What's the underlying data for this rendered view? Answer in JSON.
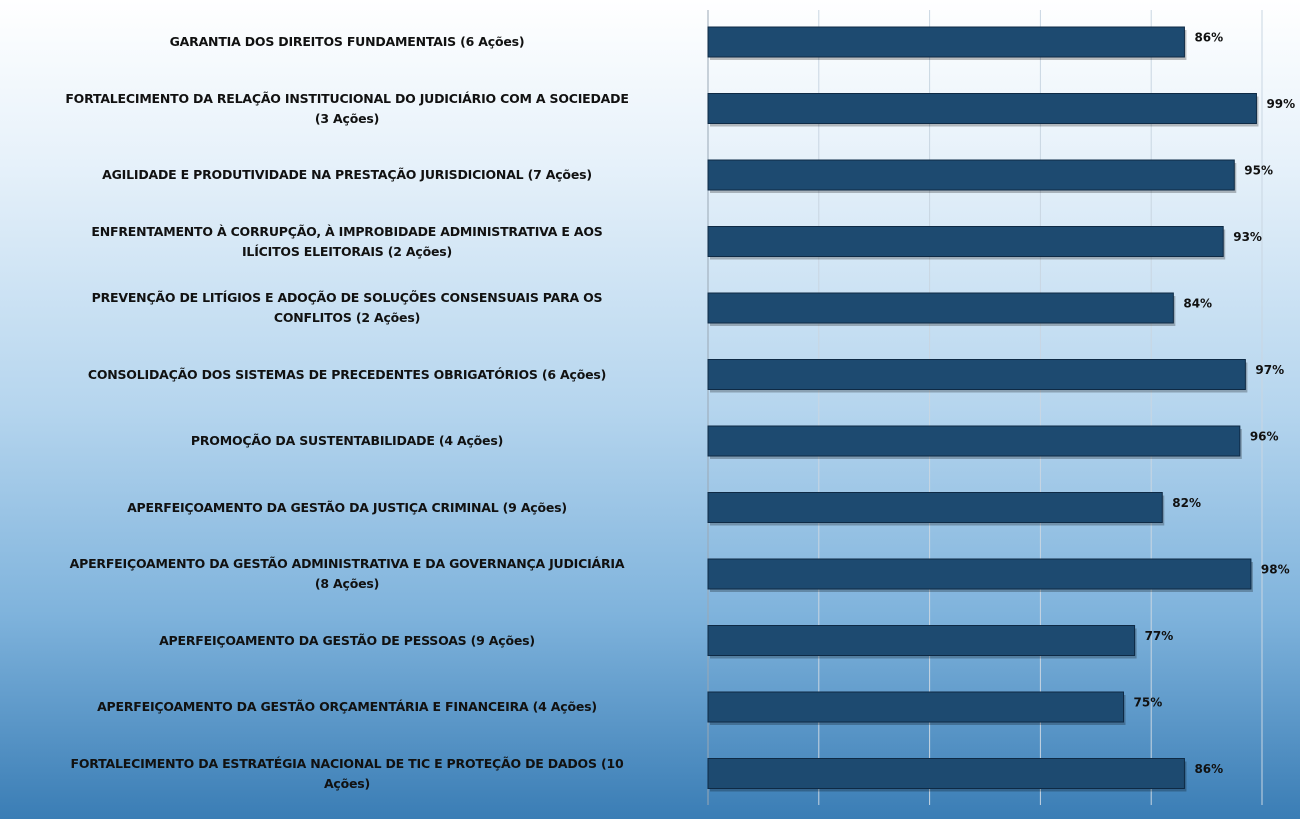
{
  "chart_data": {
    "type": "barh",
    "categories": [
      "GARANTIA DOS DIREITOS FUNDAMENTAIS (6 Ações)",
      "FORTALECIMENTO DA RELAÇÃO INSTITUCIONAL DO JUDICIÁRIO COM A SOCIEDADE\n(3 Ações)",
      "AGILIDADE E PRODUTIVIDADE NA PRESTAÇÃO JURISDICIONAL  (7 Ações)",
      "ENFRENTAMENTO À CORRUPÇÃO, À IMPROBIDADE  ADMINISTRATIVA E AOS\nILÍCITOS ELEITORAIS (2 Ações)",
      "PREVENÇÃO DE LITÍGIOS E ADOÇÃO DE SOLUÇÕES CONSENSUAIS PARA OS\nCONFLITOS (2 Ações)",
      "CONSOLIDAÇÃO DOS SISTEMAS DE PRECEDENTES OBRIGATÓRIOS (6 Ações)",
      "PROMOÇÃO DA SUSTENTABILIDADE (4 Ações)",
      "APERFEIÇOAMENTO DA GESTÃO DA JUSTIÇA CRIMINAL (9 Ações)",
      "APERFEIÇOAMENTO DA GESTÃO ADMINISTRATIVA E DA GOVERNANÇA JUDICIÁRIA\n(8 Ações)",
      "APERFEIÇOAMENTO DA GESTÃO DE PESSOAS (9 Ações)",
      "APERFEIÇOAMENTO DA GESTÃO ORÇAMENTÁRIA E FINANCEIRA (4 Ações)",
      "FORTALECIMENTO DA ESTRATÉGIA NACIONAL DE TIC E PROTEÇÃO DE DADOS (10\nAções)"
    ],
    "values": [
      86,
      99,
      95,
      93,
      84,
      97,
      96,
      82,
      98,
      77,
      75,
      86
    ],
    "value_labels": [
      "86%",
      "99%",
      "95%",
      "93%",
      "84%",
      "97%",
      "96%",
      "82%",
      "98%",
      "77%",
      "75%",
      "86%"
    ],
    "color": "#1d4a70",
    "xlim": [
      0,
      100
    ],
    "xticks": [
      0,
      20,
      40,
      60,
      80,
      100
    ],
    "grid": true
  }
}
